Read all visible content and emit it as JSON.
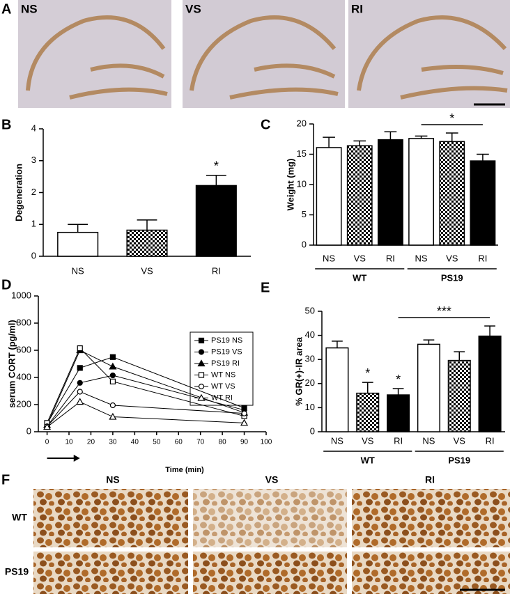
{
  "images": {
    "A": {
      "panel": "A",
      "labels": [
        "NS",
        "VS",
        "RI"
      ]
    },
    "F": {
      "panel": "F",
      "columns": [
        "NS",
        "VS",
        "RI"
      ],
      "rows": [
        "WT",
        "PS19"
      ]
    }
  },
  "chart_data": [
    {
      "panel": "B",
      "type": "bar",
      "ylabel": "Degeneration",
      "categories": [
        "NS",
        "VS",
        "RI"
      ],
      "values": [
        0.75,
        0.82,
        2.22
      ],
      "errors": [
        0.25,
        0.32,
        0.32
      ],
      "fills": [
        "white",
        "checker",
        "black"
      ],
      "ylim": [
        0,
        4
      ],
      "yticks": [
        0,
        1,
        2,
        3,
        4
      ],
      "significance": [
        null,
        null,
        "*"
      ]
    },
    {
      "panel": "C",
      "type": "bar",
      "ylabel": "Weight (mg)",
      "categories": [
        "NS",
        "VS",
        "RI",
        "NS",
        "VS",
        "RI"
      ],
      "groups": [
        {
          "name": "WT",
          "span": [
            0,
            2
          ]
        },
        {
          "name": "PS19",
          "span": [
            3,
            5
          ]
        }
      ],
      "values": [
        16.1,
        16.4,
        17.4,
        17.6,
        17.1,
        13.9
      ],
      "errors": [
        1.7,
        0.8,
        1.3,
        0.4,
        1.4,
        1.1
      ],
      "fills": [
        "white",
        "checker",
        "black",
        "white",
        "checker",
        "black"
      ],
      "ylim": [
        0,
        20
      ],
      "yticks": [
        0,
        5,
        10,
        15,
        20
      ],
      "brackets": [
        {
          "text": "*",
          "span": [
            3,
            5
          ]
        }
      ]
    },
    {
      "panel": "D",
      "type": "line",
      "xlabel": "Time (min)",
      "ylabel": "serum CORT (pg/ml)",
      "x": [
        0,
        15,
        30,
        90
      ],
      "xlim": [
        -4,
        100
      ],
      "xticks": [
        0,
        10,
        20,
        30,
        40,
        50,
        60,
        70,
        80,
        90,
        100
      ],
      "ylim": [
        0,
        1000
      ],
      "yticks": [
        0,
        200,
        400,
        600,
        800,
        1000
      ],
      "series": [
        {
          "name": "PS19 NS",
          "marker": "square-filled",
          "color": "#000",
          "values": [
            60,
            470,
            550,
            175
          ]
        },
        {
          "name": "PS19 VS",
          "marker": "circle-filled",
          "color": "#000",
          "values": [
            40,
            360,
            415,
            160
          ]
        },
        {
          "name": "PS19 RI",
          "marker": "triangle-filled",
          "color": "#000",
          "values": [
            50,
            600,
            480,
            140
          ]
        },
        {
          "name": "WT NS",
          "marker": "square-open",
          "color": "#000",
          "values": [
            65,
            615,
            370,
            115
          ]
        },
        {
          "name": "WT VS",
          "marker": "circle-open",
          "color": "#000",
          "values": [
            40,
            295,
            195,
            135
          ]
        },
        {
          "name": "WT RI",
          "marker": "triangle-open",
          "color": "#000",
          "values": [
            35,
            220,
            110,
            65
          ]
        }
      ]
    },
    {
      "panel": "E",
      "type": "bar",
      "ylabel": "% GR(+)-IR area",
      "categories": [
        "NS",
        "VS",
        "RI",
        "NS",
        "VS",
        "RI"
      ],
      "groups": [
        {
          "name": "WT",
          "span": [
            0,
            2
          ]
        },
        {
          "name": "PS19",
          "span": [
            3,
            5
          ]
        }
      ],
      "values": [
        34.8,
        16,
        15.3,
        36.3,
        29.6,
        39.7
      ],
      "errors": [
        2.8,
        4.5,
        2.6,
        1.8,
        3.6,
        4.2
      ],
      "fills": [
        "white",
        "checker",
        "black",
        "white",
        "checker",
        "black"
      ],
      "ylim": [
        0,
        50
      ],
      "yticks": [
        0,
        10,
        20,
        30,
        40,
        50
      ],
      "significance": [
        null,
        "*",
        "*",
        null,
        null,
        null
      ],
      "brackets": [
        {
          "text": "***",
          "span": [
            2,
            5
          ]
        }
      ]
    }
  ]
}
